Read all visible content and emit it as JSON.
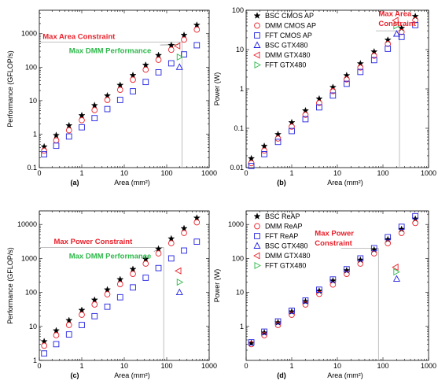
{
  "chart_data": [
    {
      "type": "scatter",
      "panel_label": "(a)",
      "xlabel": "Area (mm²)",
      "ylabel": "Performance (GFLOP/s)",
      "xscale": "log",
      "yscale": "log",
      "xlim": [
        0.1,
        1000
      ],
      "ylim": [
        0.1,
        5000
      ],
      "xticks": [
        {
          "v": 0.1,
          "t": "0"
        },
        {
          "v": 1,
          "t": "1"
        },
        {
          "v": 10,
          "t": "10"
        },
        {
          "v": 100,
          "t": "100"
        },
        {
          "v": 1000,
          "t": "1000"
        }
      ],
      "yticks": [
        {
          "v": 0.1,
          "t": "0.1"
        },
        {
          "v": 1,
          "t": "1"
        },
        {
          "v": 10,
          "t": "10"
        },
        {
          "v": 100,
          "t": "100"
        },
        {
          "v": 1000,
          "t": "1000"
        }
      ],
      "legend": false,
      "series": [
        {
          "name": "BSC",
          "marker": "star",
          "color": "#000000",
          "x": [
            0.13,
            0.25,
            0.5,
            1,
            2,
            4,
            8,
            16,
            32,
            64,
            128,
            256,
            512
          ],
          "y": [
            0.42,
            0.92,
            1.8,
            3.6,
            7.2,
            14,
            29,
            57,
            115,
            225,
            450,
            900,
            1800
          ]
        },
        {
          "name": "DMM",
          "marker": "circle",
          "color": "#e8202a",
          "x": [
            0.13,
            0.25,
            0.5,
            1,
            2,
            4,
            8,
            16,
            32,
            64,
            128,
            256,
            512
          ],
          "y": [
            0.32,
            0.65,
            1.3,
            2.6,
            5.2,
            10.5,
            21,
            42,
            84,
            165,
            330,
            660,
            1320
          ]
        },
        {
          "name": "FFT",
          "marker": "square",
          "color": "#2020e0",
          "x": [
            0.13,
            0.25,
            0.5,
            1,
            2,
            4,
            8,
            16,
            32,
            64,
            128,
            256,
            512
          ],
          "y": [
            0.25,
            0.45,
            0.85,
            1.6,
            3,
            5.6,
            10.5,
            19,
            36,
            70,
            130,
            240,
            450
          ]
        },
        {
          "name": "BSC GTX480",
          "marker": "tri-up",
          "color": "#2020e0",
          "x": [
            200
          ],
          "y": [
            100
          ]
        },
        {
          "name": "DMM GTX480",
          "marker": "tri-left",
          "color": "#e8202a",
          "x": [
            180
          ],
          "y": [
            430
          ]
        },
        {
          "name": "FFT GTX480",
          "marker": "tri-right",
          "color": "#2db84a",
          "x": [
            200
          ],
          "y": [
            200
          ]
        }
      ],
      "annotations": [
        {
          "text": "Max Area Constraint",
          "style": "red",
          "ax": 0.12,
          "ay": 700
        },
        {
          "text": "Max DMM Performance",
          "style": "green",
          "ax": 0.5,
          "ay": 260
        }
      ],
      "guides": [
        {
          "from": [
            0.1,
            560
          ],
          "to": [
            230,
            560
          ]
        },
        {
          "from": [
            230,
            0.1
          ],
          "to": [
            230,
            560
          ]
        }
      ],
      "arrows": [
        {
          "from": [
            70,
            460
          ],
          "to": [
            190,
            470
          ]
        }
      ]
    },
    {
      "type": "scatter",
      "panel_label": "(b)",
      "xlabel": "Area (mm²)",
      "ylabel": "Power (W)",
      "xscale": "log",
      "yscale": "log",
      "xlim": [
        0.1,
        1000
      ],
      "ylim": [
        0.01,
        100
      ],
      "xticks": [
        {
          "v": 0.1,
          "t": "0"
        },
        {
          "v": 1,
          "t": "1"
        },
        {
          "v": 10,
          "t": "10"
        },
        {
          "v": 100,
          "t": "100"
        },
        {
          "v": 1000,
          "t": "1000"
        }
      ],
      "yticks": [
        {
          "v": 0.01,
          "t": "0.01"
        },
        {
          "v": 0.1,
          "t": "0.1"
        },
        {
          "v": 1,
          "t": "1"
        },
        {
          "v": 10,
          "t": "10"
        },
        {
          "v": 100,
          "t": "100"
        }
      ],
      "legend": true,
      "series": [
        {
          "name": "BSC CMOS AP",
          "marker": "star",
          "color": "#000000",
          "x": [
            0.13,
            0.25,
            0.5,
            1,
            2,
            4,
            8,
            16,
            32,
            64,
            128,
            256,
            512
          ],
          "y": [
            0.017,
            0.035,
            0.07,
            0.14,
            0.28,
            0.56,
            1.1,
            2.2,
            4.4,
            8.8,
            17.5,
            35,
            70
          ]
        },
        {
          "name": "DMM CMOS AP",
          "marker": "circle",
          "color": "#e8202a",
          "x": [
            0.13,
            0.25,
            0.5,
            1,
            2,
            4,
            8,
            16,
            32,
            64,
            128,
            256,
            512
          ],
          "y": [
            0.013,
            0.027,
            0.055,
            0.11,
            0.22,
            0.44,
            0.88,
            1.75,
            3.5,
            7,
            14,
            28,
            56
          ]
        },
        {
          "name": "FFT CMOS AP",
          "marker": "square",
          "color": "#2020e0",
          "x": [
            0.13,
            0.25,
            0.5,
            1,
            2,
            4,
            8,
            16,
            32,
            64,
            128,
            256,
            512
          ],
          "y": [
            0.011,
            0.022,
            0.045,
            0.085,
            0.17,
            0.34,
            0.68,
            1.35,
            2.7,
            5.4,
            10.5,
            21,
            42
          ]
        },
        {
          "name": "BSC GTX480",
          "marker": "tri-up",
          "color": "#2020e0",
          "x": [
            200
          ],
          "y": [
            25
          ]
        },
        {
          "name": "DMM GTX480",
          "marker": "tri-left",
          "color": "#e8202a",
          "x": [
            190
          ],
          "y": [
            55
          ]
        },
        {
          "name": "FFT GTX480",
          "marker": "tri-right",
          "color": "#2db84a",
          "x": [
            195
          ],
          "y": [
            40
          ]
        }
      ],
      "annotations": [
        {
          "text": "Max Area",
          "style": "red",
          "ax": 80,
          "ay": 70
        },
        {
          "text": "Constraint",
          "style": "red",
          "ax": 80,
          "ay": 40
        }
      ],
      "guides": [
        {
          "from": [
            70,
            30
          ],
          "to": [
            230,
            30
          ]
        },
        {
          "from": [
            230,
            0.01
          ],
          "to": [
            230,
            30
          ]
        }
      ],
      "arrows": []
    },
    {
      "type": "scatter",
      "panel_label": "(c)",
      "xlabel": "Area (mm²)",
      "ylabel": "Performance (GFLOP/s)",
      "xscale": "log",
      "yscale": "log",
      "xlim": [
        0.1,
        1000
      ],
      "ylim": [
        1,
        25000
      ],
      "xticks": [
        {
          "v": 0.1,
          "t": "0"
        },
        {
          "v": 1,
          "t": "1"
        },
        {
          "v": 10,
          "t": "10"
        },
        {
          "v": 100,
          "t": "100"
        },
        {
          "v": 1000,
          "t": "1000"
        }
      ],
      "yticks": [
        {
          "v": 1,
          "t": "1"
        },
        {
          "v": 10,
          "t": "10"
        },
        {
          "v": 100,
          "t": "100"
        },
        {
          "v": 1000,
          "t": "1000"
        },
        {
          "v": 10000,
          "t": "10000"
        }
      ],
      "legend": false,
      "series": [
        {
          "name": "BSC",
          "marker": "star",
          "color": "#000000",
          "x": [
            0.13,
            0.25,
            0.5,
            1,
            2,
            4,
            8,
            16,
            32,
            64,
            128,
            256,
            512
          ],
          "y": [
            3.6,
            7.5,
            15,
            30,
            60,
            120,
            240,
            480,
            960,
            1900,
            3800,
            7600,
            15500
          ]
        },
        {
          "name": "DMM",
          "marker": "circle",
          "color": "#e8202a",
          "x": [
            0.13,
            0.25,
            0.5,
            1,
            2,
            4,
            8,
            16,
            32,
            64,
            128,
            256,
            512
          ],
          "y": [
            2.7,
            5.5,
            11,
            22,
            44,
            88,
            175,
            350,
            700,
            1400,
            2800,
            5600,
            11500
          ]
        },
        {
          "name": "FFT",
          "marker": "square",
          "color": "#2020e0",
          "x": [
            0.13,
            0.25,
            0.5,
            1,
            2,
            4,
            8,
            16,
            32,
            64,
            128,
            256,
            512
          ],
          "y": [
            1.6,
            3,
            5.8,
            11,
            20,
            38,
            72,
            140,
            270,
            520,
            1000,
            1700,
            3100
          ]
        },
        {
          "name": "BSC GTX480",
          "marker": "tri-up",
          "color": "#2020e0",
          "x": [
            200
          ],
          "y": [
            100
          ]
        },
        {
          "name": "DMM GTX480",
          "marker": "tri-left",
          "color": "#e8202a",
          "x": [
            190
          ],
          "y": [
            430
          ]
        },
        {
          "name": "FFT GTX480",
          "marker": "tri-right",
          "color": "#2db84a",
          "x": [
            200
          ],
          "y": [
            200
          ]
        }
      ],
      "annotations": [
        {
          "text": "Max Power Constraint",
          "style": "red",
          "ax": 0.22,
          "ay": 2700
        },
        {
          "text": "Max DMM Performance",
          "style": "green",
          "ax": 0.5,
          "ay": 1000
        }
      ],
      "guides": [
        {
          "from": [
            0.1,
            2100
          ],
          "to": [
            85,
            2100
          ]
        },
        {
          "from": [
            85,
            1
          ],
          "to": [
            85,
            2100
          ]
        }
      ],
      "arrows": [
        {
          "from": [
            50,
            1600
          ],
          "to": [
            78,
            2100
          ]
        }
      ]
    },
    {
      "type": "scatter",
      "panel_label": "(d)",
      "xlabel": "Area (mm²)",
      "ylabel": "Power (W)",
      "xscale": "log",
      "yscale": "log",
      "xlim": [
        0.1,
        1000
      ],
      "ylim": [
        0.1,
        2500
      ],
      "xticks": [
        {
          "v": 0.1,
          "t": "0"
        },
        {
          "v": 1,
          "t": "1"
        },
        {
          "v": 10,
          "t": "10"
        },
        {
          "v": 100,
          "t": "100"
        },
        {
          "v": 1000,
          "t": "1000"
        }
      ],
      "yticks": [
        {
          "v": 1,
          "t": "1"
        },
        {
          "v": 10,
          "t": "10"
        },
        {
          "v": 100,
          "t": "100"
        },
        {
          "v": 1000,
          "t": "1000"
        }
      ],
      "legend": true,
      "series": [
        {
          "name": "BSC ReAP",
          "marker": "star",
          "color": "#000000",
          "x": [
            0.13,
            0.25,
            0.5,
            1,
            2,
            4,
            8,
            16,
            32,
            64,
            128,
            256,
            512
          ],
          "y": [
            0.32,
            0.65,
            1.3,
            2.7,
            5.4,
            11,
            22,
            44,
            90,
            180,
            360,
            720,
            1450
          ]
        },
        {
          "name": "DMM ReAP",
          "marker": "circle",
          "color": "#e8202a",
          "x": [
            0.13,
            0.25,
            0.5,
            1,
            2,
            4,
            8,
            16,
            32,
            64,
            128,
            256,
            512
          ],
          "y": [
            0.3,
            0.55,
            1.1,
            2.2,
            4.4,
            9,
            17,
            35,
            70,
            140,
            280,
            560,
            1100
          ]
        },
        {
          "name": "FFT ReAP",
          "marker": "square",
          "color": "#2020e0",
          "x": [
            0.13,
            0.25,
            0.5,
            1,
            2,
            4,
            8,
            16,
            32,
            64,
            128,
            256,
            512
          ],
          "y": [
            0.34,
            0.7,
            1.4,
            2.9,
            5.8,
            12,
            24,
            48,
            100,
            200,
            420,
            850,
            1750
          ]
        },
        {
          "name": "BSC GTX480",
          "marker": "tri-up",
          "color": "#2020e0",
          "x": [
            200
          ],
          "y": [
            25
          ]
        },
        {
          "name": "DMM GTX480",
          "marker": "tri-left",
          "color": "#e8202a",
          "x": [
            190
          ],
          "y": [
            55
          ]
        },
        {
          "name": "FFT GTX480",
          "marker": "tri-right",
          "color": "#2db84a",
          "x": [
            195
          ],
          "y": [
            40
          ]
        }
      ],
      "annotations": [
        {
          "text": "Max Power",
          "style": "red",
          "ax": 3.2,
          "ay": 470
        },
        {
          "text": "Constraint",
          "style": "red",
          "ax": 3.2,
          "ay": 240
        }
      ],
      "guides": [
        {
          "from": [
            12,
            200
          ],
          "to": [
            80,
            200
          ]
        },
        {
          "from": [
            80,
            0.1
          ],
          "to": [
            80,
            200
          ]
        }
      ],
      "arrows": []
    }
  ]
}
